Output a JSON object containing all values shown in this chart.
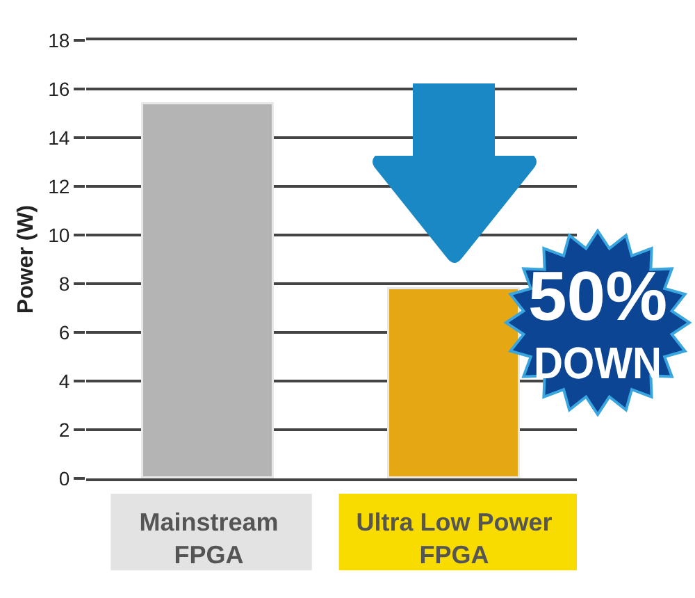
{
  "chart_data": {
    "type": "bar",
    "ylabel": "Power (W)",
    "categories": [
      "Mainstream FPGA",
      "Ultra Low Power FPGA"
    ],
    "values": [
      15.4,
      7.8
    ],
    "colors": [
      "#b4b4b4",
      "#e5a814"
    ],
    "ylim": [
      0,
      18
    ],
    "yticks": [
      0,
      2,
      4,
      6,
      8,
      10,
      12,
      14,
      16,
      18
    ],
    "grid": "y",
    "annotations": [
      "50%\nDOWN"
    ]
  }
}
